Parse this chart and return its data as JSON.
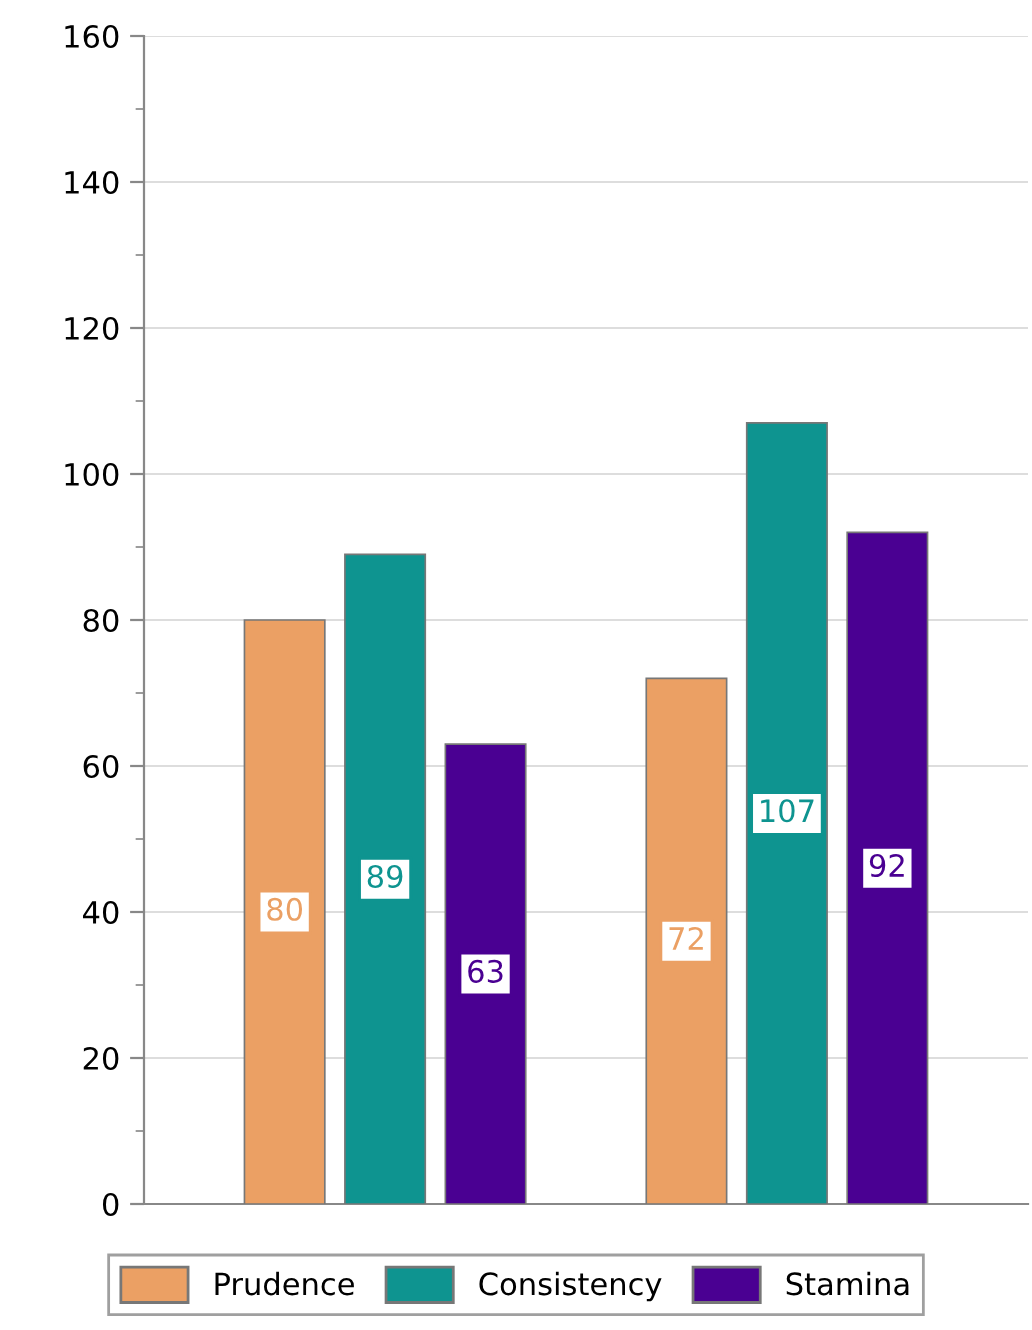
{
  "chart_data": {
    "type": "bar",
    "categories": [
      null,
      null
    ],
    "series": [
      {
        "name": "Prudence",
        "color": "#eba064",
        "values": [
          80,
          72
        ]
      },
      {
        "name": "Consistency",
        "color": "#0e9490",
        "values": [
          89,
          107
        ]
      },
      {
        "name": "Stamina",
        "color": "#4a0092",
        "values": [
          63,
          92
        ]
      }
    ],
    "ylim": [
      0,
      160
    ],
    "yticks": [
      0,
      20,
      40,
      60,
      80,
      100,
      120,
      140,
      160
    ],
    "grid": "y",
    "legend": "bottom",
    "data_labels": true
  }
}
